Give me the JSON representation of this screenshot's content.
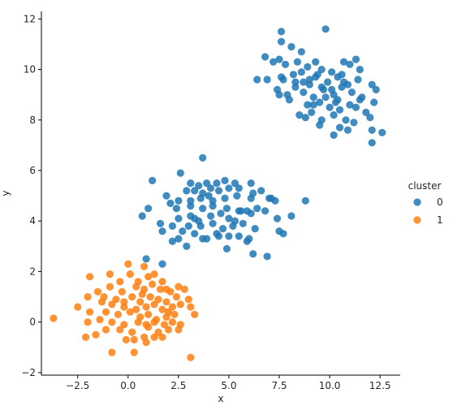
{
  "chart_data": {
    "type": "scatter",
    "xlabel": "x",
    "ylabel": "y",
    "xlim": [
      -4.3,
      13.5
    ],
    "ylim": [
      -2.1,
      12.3
    ],
    "x_ticks": [
      -2.5,
      0.0,
      2.5,
      5.0,
      7.5,
      10.0,
      12.5
    ],
    "x_tick_labels": [
      "−2.5",
      "0.0",
      "2.5",
      "5.0",
      "7.5",
      "10.0",
      "12.5"
    ],
    "y_ticks": [
      -2,
      0,
      2,
      4,
      6,
      8,
      10,
      12
    ],
    "y_tick_labels": [
      "−2",
      "0",
      "2",
      "4",
      "6",
      "8",
      "10",
      "12"
    ],
    "grid": false,
    "legend": {
      "title": "cluster",
      "placement": "right"
    },
    "series": [
      {
        "name": "0",
        "color": "#1f77b4",
        "points": [
          [
            7.6,
            11.5
          ],
          [
            9.8,
            11.6
          ],
          [
            7.6,
            11.1
          ],
          [
            8.1,
            10.9
          ],
          [
            8.6,
            10.7
          ],
          [
            7.2,
            10.3
          ],
          [
            6.8,
            10.5
          ],
          [
            7.8,
            10.2
          ],
          [
            7.5,
            10.4
          ],
          [
            8.4,
            10.3
          ],
          [
            8.9,
            10.1
          ],
          [
            9.3,
            10.3
          ],
          [
            9.6,
            10.0
          ],
          [
            10.1,
            9.9
          ],
          [
            10.6,
            9.8
          ],
          [
            11.3,
            10.4
          ],
          [
            11.0,
            10.2
          ],
          [
            11.5,
            10.0
          ],
          [
            10.7,
            10.3
          ],
          [
            6.4,
            9.6
          ],
          [
            6.9,
            9.6
          ],
          [
            7.7,
            9.6
          ],
          [
            8.2,
            9.8
          ],
          [
            8.6,
            9.9
          ],
          [
            9.0,
            9.6
          ],
          [
            9.4,
            9.8
          ],
          [
            9.9,
            9.5
          ],
          [
            10.4,
            9.7
          ],
          [
            10.9,
            9.4
          ],
          [
            11.4,
            9.6
          ],
          [
            12.1,
            9.4
          ],
          [
            12.3,
            9.2
          ],
          [
            7.4,
            9.2
          ],
          [
            7.9,
            9.0
          ],
          [
            8.3,
            9.3
          ],
          [
            8.7,
            9.1
          ],
          [
            9.2,
            8.9
          ],
          [
            9.7,
            9.2
          ],
          [
            10.2,
            9.0
          ],
          [
            10.6,
            9.3
          ],
          [
            11.1,
            9.1
          ],
          [
            11.6,
            8.9
          ],
          [
            12.2,
            8.7
          ],
          [
            7.5,
            9.0
          ],
          [
            8.0,
            8.8
          ],
          [
            8.9,
            8.6
          ],
          [
            9.5,
            8.7
          ],
          [
            10.0,
            8.5
          ],
          [
            10.5,
            8.4
          ],
          [
            11.0,
            8.6
          ],
          [
            11.3,
            8.5
          ],
          [
            11.8,
            8.3
          ],
          [
            8.5,
            8.2
          ],
          [
            9.1,
            8.3
          ],
          [
            9.6,
            8.0
          ],
          [
            10.2,
            8.2
          ],
          [
            10.8,
            8.0
          ],
          [
            11.2,
            7.9
          ],
          [
            8.8,
            8.1
          ],
          [
            9.5,
            7.8
          ],
          [
            10.2,
            7.4
          ],
          [
            10.5,
            7.7
          ],
          [
            10.9,
            7.6
          ],
          [
            12.1,
            7.6
          ],
          [
            12.6,
            7.5
          ],
          [
            12.1,
            7.1
          ],
          [
            12.0,
            8.1
          ],
          [
            9.2,
            8.6
          ],
          [
            9.8,
            8.9
          ],
          [
            10.4,
            8.8
          ],
          [
            11.5,
            8.8
          ],
          [
            8.3,
            9.5
          ],
          [
            9.0,
            9.4
          ],
          [
            9.6,
            9.3
          ],
          [
            10.1,
            9.2
          ],
          [
            10.7,
            9.5
          ],
          [
            7.6,
            9.7
          ],
          [
            8.7,
            9.5
          ],
          [
            9.3,
            9.7
          ],
          [
            10.3,
            8.7
          ],
          [
            3.7,
            6.5
          ],
          [
            1.2,
            5.6
          ],
          [
            2.6,
            5.9
          ],
          [
            3.1,
            5.5
          ],
          [
            3.5,
            5.4
          ],
          [
            3.9,
            5.5
          ],
          [
            4.4,
            5.5
          ],
          [
            4.8,
            5.6
          ],
          [
            5.3,
            5.5
          ],
          [
            6.1,
            5.5
          ],
          [
            4.1,
            5.3
          ],
          [
            3.3,
            5.2
          ],
          [
            2.9,
            5.2
          ],
          [
            3.7,
            5.1
          ],
          [
            4.5,
            5.2
          ],
          [
            5.0,
            5.3
          ],
          [
            5.5,
            5.3
          ],
          [
            6.2,
            5.1
          ],
          [
            6.6,
            5.2
          ],
          [
            1.9,
            5.0
          ],
          [
            2.5,
            4.8
          ],
          [
            3.1,
            4.8
          ],
          [
            3.6,
            4.9
          ],
          [
            4.2,
            4.8
          ],
          [
            4.8,
            4.9
          ],
          [
            5.4,
            5.0
          ],
          [
            6.1,
            4.9
          ],
          [
            7.1,
            4.9
          ],
          [
            7.3,
            4.8
          ],
          [
            7.0,
            4.9
          ],
          [
            8.8,
            4.8
          ],
          [
            1.0,
            4.5
          ],
          [
            2.1,
            4.7
          ],
          [
            2.4,
            4.5
          ],
          [
            3.1,
            4.6
          ],
          [
            3.7,
            4.5
          ],
          [
            4.2,
            4.6
          ],
          [
            4.9,
            4.5
          ],
          [
            5.5,
            4.4
          ],
          [
            5.9,
            4.4
          ],
          [
            6.4,
            4.5
          ],
          [
            6.8,
            4.4
          ],
          [
            0.7,
            4.2
          ],
          [
            1.6,
            3.9
          ],
          [
            2.2,
            3.8
          ],
          [
            2.5,
            4.1
          ],
          [
            3.1,
            4.2
          ],
          [
            3.5,
            4.0
          ],
          [
            4.1,
            4.2
          ],
          [
            4.6,
            4.3
          ],
          [
            5.0,
            4.1
          ],
          [
            5.3,
            4.0
          ],
          [
            6.1,
            4.3
          ],
          [
            7.4,
            4.1
          ],
          [
            8.1,
            4.2
          ],
          [
            1.7,
            3.6
          ],
          [
            2.7,
            3.6
          ],
          [
            3.0,
            3.8
          ],
          [
            3.6,
            3.8
          ],
          [
            4.2,
            3.9
          ],
          [
            4.7,
            3.7
          ],
          [
            5.2,
            3.8
          ],
          [
            5.7,
            3.9
          ],
          [
            6.3,
            3.7
          ],
          [
            7.5,
            3.6
          ],
          [
            2.5,
            3.3
          ],
          [
            3.3,
            3.5
          ],
          [
            3.9,
            3.3
          ],
          [
            4.4,
            3.5
          ],
          [
            5.0,
            3.4
          ],
          [
            5.5,
            3.4
          ],
          [
            5.9,
            3.2
          ],
          [
            7.7,
            3.5
          ],
          [
            2.2,
            3.2
          ],
          [
            3.7,
            3.3
          ],
          [
            4.5,
            3.4
          ],
          [
            6.0,
            3.3
          ],
          [
            2.9,
            3.0
          ],
          [
            4.9,
            2.9
          ],
          [
            6.2,
            2.7
          ],
          [
            6.9,
            2.6
          ],
          [
            1.7,
            2.3
          ],
          [
            0.9,
            2.5
          ],
          [
            5.6,
            4.4
          ],
          [
            3.3,
            4.1
          ],
          [
            4.0,
            5.0
          ]
        ]
      },
      {
        "name": "1",
        "color": "#ff7f0e",
        "points": [
          [
            0.0,
            2.3
          ],
          [
            0.8,
            2.2
          ],
          [
            -1.9,
            1.8
          ],
          [
            -0.9,
            1.9
          ],
          [
            -0.4,
            1.6
          ],
          [
            0.1,
            1.9
          ],
          [
            0.5,
            1.6
          ],
          [
            1.0,
            1.8
          ],
          [
            1.3,
            1.9
          ],
          [
            1.7,
            1.6
          ],
          [
            -0.9,
            1.4
          ],
          [
            -0.3,
            1.2
          ],
          [
            0.4,
            1.4
          ],
          [
            0.8,
            1.3
          ],
          [
            1.2,
            1.5
          ],
          [
            1.9,
            1.3
          ],
          [
            2.1,
            1.2
          ],
          [
            2.5,
            1.4
          ],
          [
            2.8,
            1.3
          ],
          [
            -1.5,
            1.2
          ],
          [
            -2.0,
            1.0
          ],
          [
            -1.2,
            1.0
          ],
          [
            -0.6,
            0.9
          ],
          [
            0.2,
            1.0
          ],
          [
            0.6,
            0.8
          ],
          [
            1.1,
            1.0
          ],
          [
            1.5,
            0.9
          ],
          [
            1.9,
            0.8
          ],
          [
            2.4,
            1.0
          ],
          [
            3.0,
            0.9
          ],
          [
            -1.3,
            0.8
          ],
          [
            -0.8,
            0.7
          ],
          [
            -0.2,
            0.6
          ],
          [
            0.4,
            0.5
          ],
          [
            0.9,
            0.6
          ],
          [
            1.3,
            0.7
          ],
          [
            1.7,
            0.5
          ],
          [
            2.2,
            0.6
          ],
          [
            2.6,
            0.7
          ],
          [
            3.1,
            0.6
          ],
          [
            -2.5,
            0.6
          ],
          [
            -1.9,
            0.4
          ],
          [
            -1.1,
            0.4
          ],
          [
            -0.5,
            0.3
          ],
          [
            0.1,
            0.4
          ],
          [
            0.6,
            0.2
          ],
          [
            1.0,
            0.3
          ],
          [
            1.4,
            0.1
          ],
          [
            1.9,
            0.2
          ],
          [
            2.3,
            0.3
          ],
          [
            3.3,
            0.3
          ],
          [
            -3.7,
            0.15
          ],
          [
            -2.0,
            0.0
          ],
          [
            -1.4,
            0.1
          ],
          [
            -0.8,
            0.0
          ],
          [
            -0.2,
            -0.1
          ],
          [
            0.5,
            0.0
          ],
          [
            0.9,
            -0.1
          ],
          [
            1.3,
            0.0
          ],
          [
            1.8,
            -0.1
          ],
          [
            2.2,
            0.0
          ],
          [
            2.6,
            -0.1
          ],
          [
            -1.1,
            -0.3
          ],
          [
            -0.4,
            -0.3
          ],
          [
            0.2,
            -0.4
          ],
          [
            1.0,
            -0.2
          ],
          [
            1.5,
            -0.4
          ],
          [
            2.0,
            -0.3
          ],
          [
            2.5,
            -0.3
          ],
          [
            -2.1,
            -0.6
          ],
          [
            -1.6,
            -0.5
          ],
          [
            0.3,
            -0.7
          ],
          [
            0.8,
            -0.6
          ],
          [
            1.3,
            -0.6
          ],
          [
            1.7,
            -0.6
          ],
          [
            -0.1,
            -0.7
          ],
          [
            0.9,
            -0.8
          ],
          [
            -0.8,
            -1.2
          ],
          [
            0.3,
            -1.2
          ],
          [
            3.1,
            -1.4
          ],
          [
            1.6,
            1.3
          ],
          [
            0.7,
            1.1
          ],
          [
            -0.2,
            0.8
          ],
          [
            2.0,
            0.4
          ]
        ]
      }
    ]
  }
}
